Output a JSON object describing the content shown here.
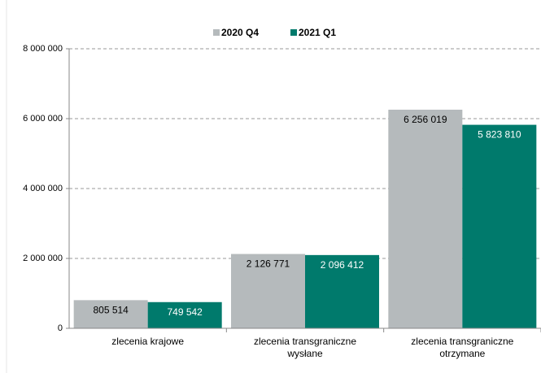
{
  "chart_data": {
    "type": "bar",
    "categories": [
      [
        "zlecenia krajowe"
      ],
      [
        "zlecenia transgraniczne",
        "wysłane"
      ],
      [
        "zlecenia transgraniczne",
        "otrzymane"
      ]
    ],
    "series": [
      {
        "name": "2020 Q4",
        "color": "#b5babc",
        "label_color": "#000000",
        "values": [
          805514,
          2126771,
          6256019
        ],
        "value_labels": [
          "805 514",
          "2 126 771",
          "6 256 019"
        ]
      },
      {
        "name": "2021 Q1",
        "color": "#007a6c",
        "label_color": "#ffffff",
        "values": [
          749542,
          2096412,
          5823810
        ],
        "value_labels": [
          "749 542",
          "2 096 412",
          "5 823 810"
        ]
      }
    ],
    "ylim": [
      0,
      8000000
    ],
    "yticks": [
      {
        "value": 0,
        "label": "0"
      },
      {
        "value": 2000000,
        "label": "2 000 000"
      },
      {
        "value": 4000000,
        "label": "4 000 000"
      },
      {
        "value": 6000000,
        "label": "6 000 000"
      },
      {
        "value": 8000000,
        "label": "8 000 000"
      }
    ],
    "grid": true,
    "legend": "top"
  }
}
